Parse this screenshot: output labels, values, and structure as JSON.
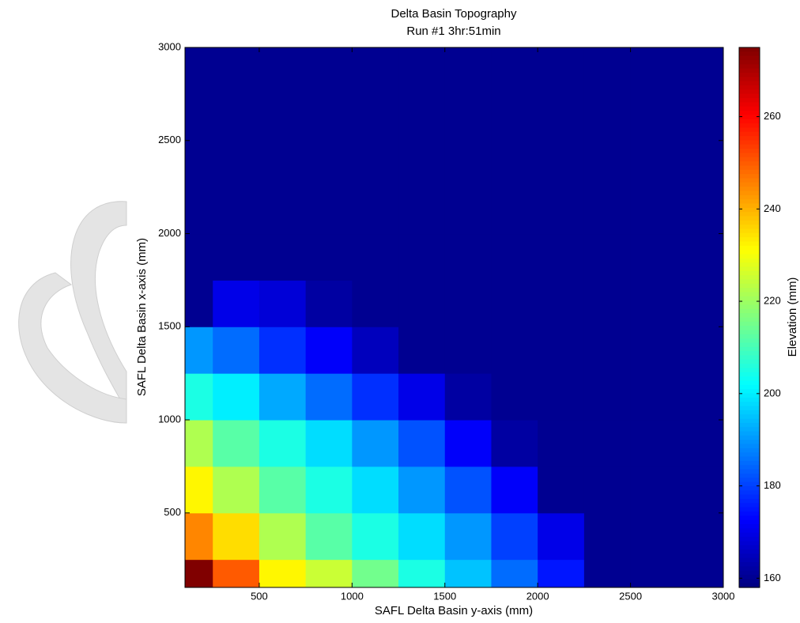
{
  "chart_data": {
    "type": "heatmap",
    "title": "Delta Basin Topography",
    "subtitle": "Run #1 3hr:51min",
    "x_label": "SAFL Delta Basin y-axis (mm)",
    "y_label": "SAFL Delta Basin x-axis (mm)",
    "colorbar_label": "Elevation (mm)",
    "colormap": "jet",
    "xlim": [
      100,
      3000
    ],
    "ylim": [
      100,
      3000
    ],
    "xticks": [
      500,
      1000,
      1500,
      2000,
      2500,
      3000
    ],
    "yticks": [
      500,
      1000,
      1500,
      2000,
      2500,
      3000
    ],
    "clim": [
      158,
      275
    ],
    "cticks": [
      160,
      180,
      200,
      220,
      240,
      260
    ],
    "x_edges": [
      100,
      250,
      500,
      750,
      1000,
      1250,
      1500,
      1750,
      2000,
      2250,
      2500,
      3000
    ],
    "y_edges": [
      100,
      250,
      500,
      750,
      1000,
      1250,
      1500,
      1750,
      2000,
      3000
    ],
    "z": [
      [
        275,
        250,
        232,
        225,
        215,
        205,
        195,
        185,
        175,
        160,
        160
      ],
      [
        245,
        235,
        222,
        212,
        205,
        198,
        190,
        180,
        170,
        160,
        160
      ],
      [
        232,
        222,
        212,
        205,
        198,
        190,
        182,
        172,
        160,
        160,
        160
      ],
      [
        222,
        212,
        205,
        198,
        190,
        182,
        172,
        162,
        160,
        160,
        160
      ],
      [
        205,
        200,
        192,
        185,
        178,
        170,
        162,
        160,
        160,
        160,
        160
      ],
      [
        190,
        185,
        178,
        172,
        165,
        160,
        160,
        160,
        160,
        160,
        160
      ],
      [
        160,
        170,
        168,
        162,
        160,
        160,
        160,
        160,
        160,
        160,
        160
      ],
      [
        160,
        160,
        160,
        160,
        160,
        160,
        160,
        160,
        160,
        160,
        160
      ],
      [
        160,
        160,
        160,
        160,
        160,
        160,
        160,
        160,
        160,
        160,
        160
      ]
    ]
  }
}
